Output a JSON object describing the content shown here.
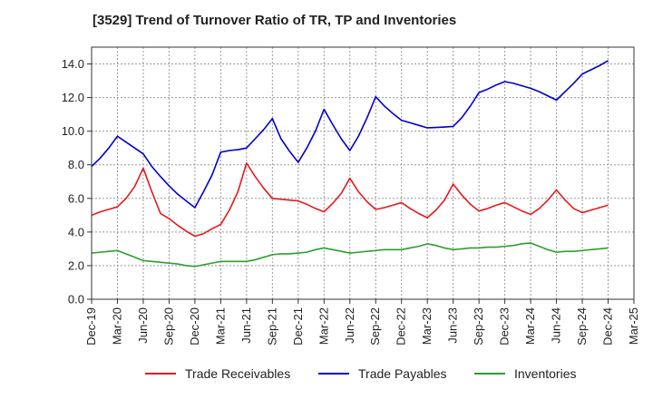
{
  "chart_data": {
    "type": "line",
    "title": "[3529]  Trend of Turnover Ratio of TR, TP and Inventories",
    "xlabel": "",
    "ylabel": "",
    "ylim": [
      0,
      15
    ],
    "yticks": [
      "0.0",
      "2.0",
      "4.0",
      "6.0",
      "8.0",
      "10.0",
      "12.0",
      "14.0"
    ],
    "ytick_values": [
      0,
      2,
      4,
      6,
      8,
      10,
      12,
      14
    ],
    "xtick_labels": [
      "Dec-19",
      "Mar-20",
      "Jun-20",
      "Sep-20",
      "Dec-20",
      "Mar-21",
      "Jun-21",
      "Sep-21",
      "Dec-21",
      "Mar-22",
      "Jun-22",
      "Sep-22",
      "Dec-22",
      "Mar-23",
      "Jun-23",
      "Sep-23",
      "Dec-23",
      "Mar-24",
      "Jun-24",
      "Sep-24",
      "Dec-24",
      "Mar-25"
    ],
    "x": [
      "Dec-19",
      "Jan-20",
      "Feb-20",
      "Mar-20",
      "Apr-20",
      "May-20",
      "Jun-20",
      "Jul-20",
      "Aug-20",
      "Sep-20",
      "Oct-20",
      "Nov-20",
      "Dec-20",
      "Jan-21",
      "Feb-21",
      "Mar-21",
      "Apr-21",
      "May-21",
      "Jun-21",
      "Jul-21",
      "Aug-21",
      "Sep-21",
      "Oct-21",
      "Nov-21",
      "Dec-21",
      "Jan-22",
      "Feb-22",
      "Mar-22",
      "Apr-22",
      "May-22",
      "Jun-22",
      "Jul-22",
      "Aug-22",
      "Sep-22",
      "Oct-22",
      "Nov-22",
      "Dec-22",
      "Jan-23",
      "Feb-23",
      "Mar-23",
      "Apr-23",
      "May-23",
      "Jun-23",
      "Jul-23",
      "Aug-23",
      "Sep-23",
      "Oct-23",
      "Nov-23",
      "Dec-23",
      "Jan-24",
      "Feb-24",
      "Mar-24",
      "Apr-24",
      "May-24",
      "Jun-24",
      "Jul-24",
      "Aug-24",
      "Sep-24",
      "Oct-24",
      "Nov-24",
      "Dec-24"
    ],
    "series": [
      {
        "name": "Trade Receivables",
        "color": "#e31a1c",
        "values": [
          5.0,
          5.2,
          5.35,
          5.5,
          6.0,
          6.7,
          7.8,
          6.4,
          5.1,
          4.8,
          4.4,
          4.05,
          3.75,
          3.9,
          4.2,
          4.45,
          5.3,
          6.4,
          8.1,
          7.3,
          6.6,
          6.0,
          5.95,
          5.9,
          5.85,
          5.65,
          5.4,
          5.2,
          5.7,
          6.3,
          7.2,
          6.4,
          5.8,
          5.35,
          5.45,
          5.6,
          5.75,
          5.4,
          5.1,
          4.85,
          5.3,
          5.9,
          6.85,
          6.2,
          5.65,
          5.25,
          5.4,
          5.6,
          5.75,
          5.5,
          5.25,
          5.05,
          5.4,
          5.9,
          6.5,
          5.9,
          5.4,
          5.15,
          5.3,
          5.45,
          5.6
        ]
      },
      {
        "name": "Trade Payables",
        "color": "#0000cc",
        "values": [
          7.9,
          8.4,
          9.0,
          9.7,
          9.35,
          9.0,
          8.65,
          7.9,
          7.3,
          6.75,
          6.25,
          5.85,
          5.45,
          6.4,
          7.4,
          8.75,
          8.85,
          8.9,
          9.0,
          9.55,
          10.1,
          10.75,
          9.55,
          8.8,
          8.15,
          9.0,
          10.0,
          11.3,
          10.4,
          9.55,
          8.85,
          9.7,
          10.8,
          12.05,
          11.5,
          11.05,
          10.65,
          10.5,
          10.35,
          10.2,
          10.22,
          10.25,
          10.28,
          10.8,
          11.5,
          12.3,
          12.5,
          12.75,
          12.95,
          12.85,
          12.7,
          12.55,
          12.35,
          12.1,
          11.85,
          12.35,
          12.85,
          13.4,
          13.65,
          13.9,
          14.2
        ]
      },
      {
        "name": "Inventories",
        "color": "#2ca02c",
        "values": [
          2.75,
          2.8,
          2.85,
          2.9,
          2.7,
          2.5,
          2.3,
          2.25,
          2.2,
          2.15,
          2.1,
          2.0,
          1.95,
          2.05,
          2.15,
          2.25,
          2.25,
          2.25,
          2.25,
          2.35,
          2.5,
          2.65,
          2.7,
          2.7,
          2.75,
          2.8,
          2.95,
          3.05,
          2.95,
          2.85,
          2.75,
          2.8,
          2.85,
          2.9,
          2.95,
          2.95,
          2.95,
          3.05,
          3.15,
          3.3,
          3.2,
          3.05,
          2.95,
          3.0,
          3.05,
          3.05,
          3.1,
          3.1,
          3.15,
          3.2,
          3.3,
          3.35,
          3.15,
          2.95,
          2.8,
          2.85,
          2.85,
          2.9,
          2.95,
          3.0,
          3.05
        ]
      }
    ],
    "grid": true,
    "legend": "bottom"
  }
}
